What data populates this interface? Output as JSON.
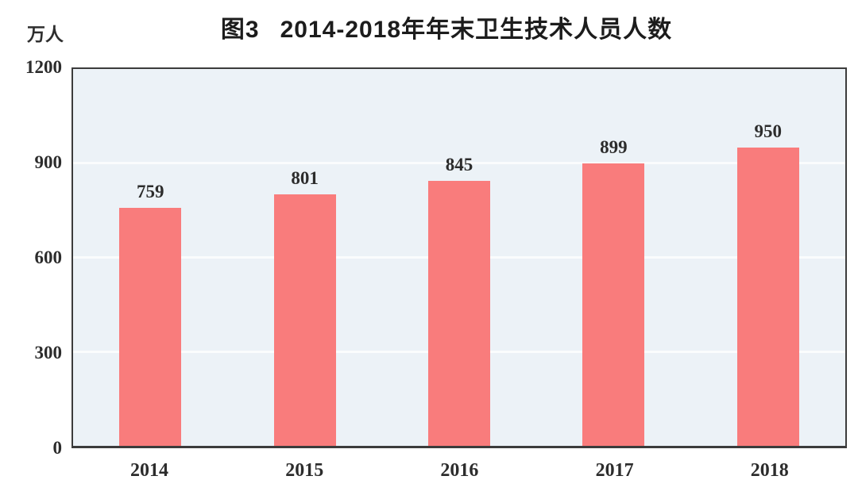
{
  "header": {
    "figure_label": "图3",
    "title": "2014-2018年年末卫生技术人员人数"
  },
  "y_axis": {
    "unit_label": "万人"
  },
  "chart_data": {
    "type": "bar",
    "title": "图3 2014-2018年年末卫生技术人员人数",
    "categories": [
      "2014",
      "2015",
      "2016",
      "2017",
      "2018"
    ],
    "values": [
      759,
      801,
      845,
      899,
      950
    ],
    "xlabel": "",
    "ylabel": "万人",
    "ylim": [
      0,
      1200
    ],
    "yticks": [
      0,
      300,
      600,
      900,
      1200
    ],
    "grid": true,
    "gridlines_at": [
      300,
      600,
      900
    ],
    "legend_position": "none",
    "data_labels": true,
    "bar_color": "#F97C7C",
    "plot_bg_color": "#ECF2F7",
    "gridline_color": "#FAFCFD",
    "frame_color": "#3C3C3C",
    "text_color": "#2C2C2C"
  }
}
